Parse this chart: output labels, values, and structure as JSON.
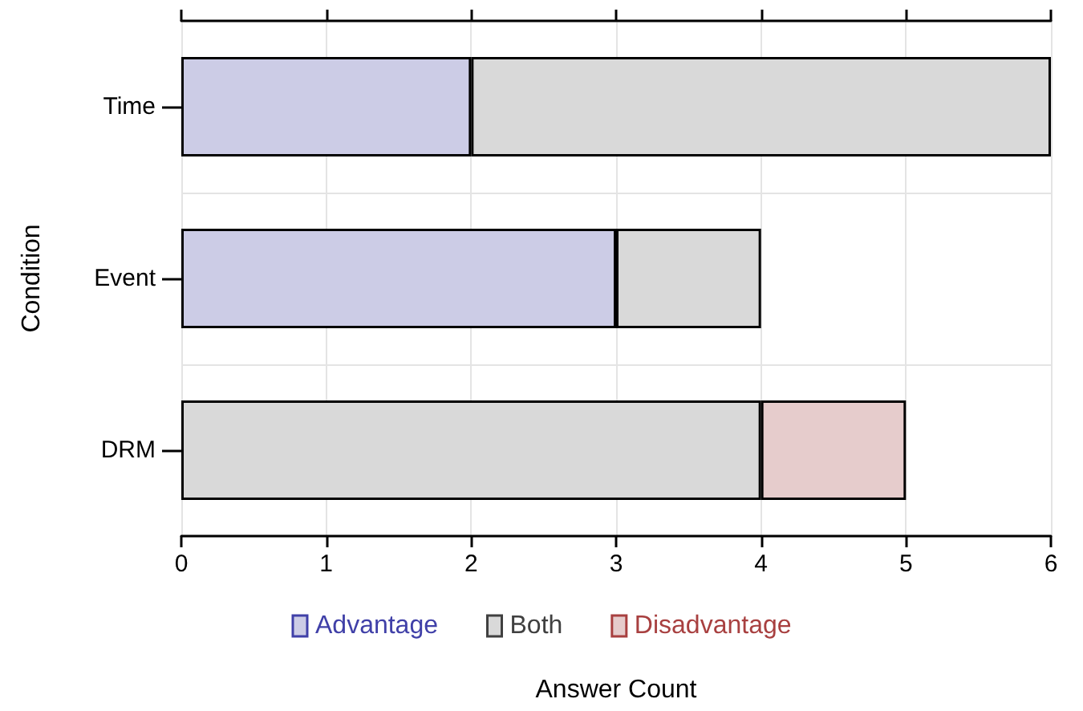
{
  "chart_data": {
    "type": "bar",
    "orientation": "horizontal",
    "stacked": true,
    "xlabel": "Answer Count",
    "ylabel": "Condition",
    "categories": [
      "Time",
      "Event",
      "DRM"
    ],
    "series": [
      {
        "name": "Advantage",
        "color": "#cccce6",
        "values": [
          2,
          3,
          0
        ]
      },
      {
        "name": "Both",
        "color": "#d9d9d9",
        "values": [
          4,
          1,
          4
        ]
      },
      {
        "name": "Disadvantage",
        "color": "#e6cccc",
        "values": [
          0,
          0,
          1
        ]
      }
    ],
    "xlim": [
      0,
      6
    ],
    "xticks": [
      0,
      1,
      2,
      3,
      4,
      5,
      6
    ],
    "grid": true,
    "legend": "bottom"
  }
}
